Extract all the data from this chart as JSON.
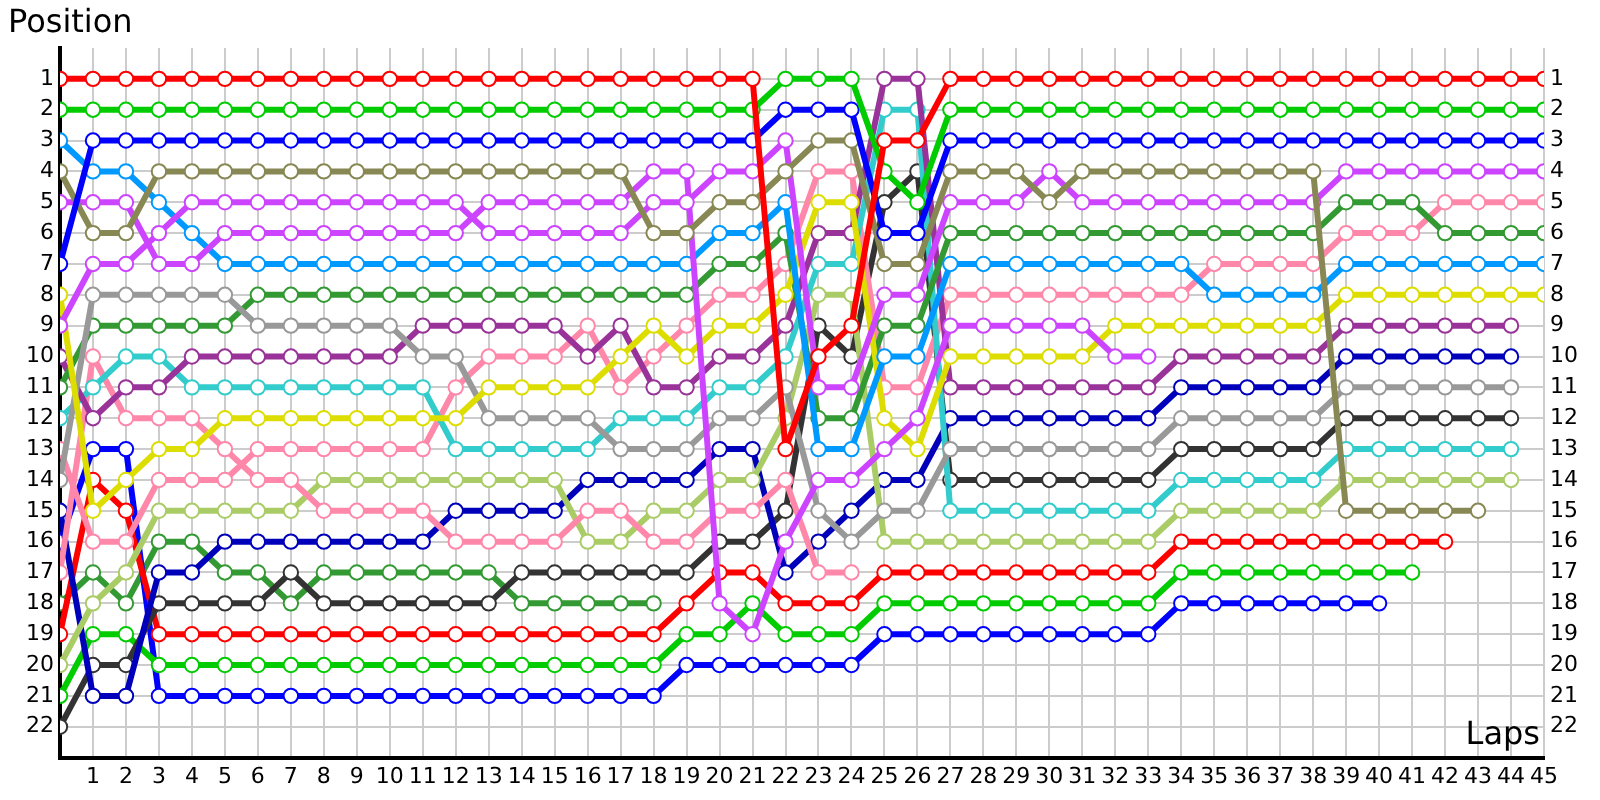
{
  "chart_data": {
    "type": "line",
    "xlabel": "Laps",
    "ylabel": "Position",
    "grid": true,
    "legend": false,
    "marker": "circle",
    "line_style": "solid",
    "x": [
      0,
      1,
      2,
      3,
      4,
      5,
      6,
      7,
      8,
      9,
      10,
      11,
      12,
      13,
      14,
      15,
      16,
      17,
      18,
      19,
      20,
      21,
      22,
      23,
      24,
      25,
      26,
      27,
      28,
      29,
      30,
      31,
      32,
      33,
      34,
      35,
      36,
      37,
      38,
      39,
      40,
      41,
      42,
      43,
      44,
      45
    ],
    "xlim": [
      0,
      45
    ],
    "xticks": [
      1,
      2,
      3,
      4,
      5,
      6,
      7,
      8,
      9,
      10,
      11,
      12,
      13,
      14,
      15,
      16,
      17,
      18,
      19,
      20,
      21,
      22,
      23,
      24,
      25,
      26,
      27,
      28,
      29,
      30,
      31,
      32,
      33,
      34,
      35,
      36,
      37,
      38,
      39,
      40,
      41,
      42,
      43,
      44,
      45
    ],
    "ylim": [
      23,
      0
    ],
    "yticks": [
      1,
      2,
      3,
      4,
      5,
      6,
      7,
      8,
      9,
      10,
      11,
      12,
      13,
      14,
      15,
      16,
      17,
      18,
      19,
      20,
      21,
      22
    ],
    "y2lim": [
      23,
      0
    ],
    "y2ticks": [
      1,
      2,
      3,
      4,
      5,
      6,
      7,
      8,
      9,
      10,
      11,
      12,
      13,
      14,
      15,
      16,
      17,
      18,
      19,
      20,
      21,
      22
    ],
    "series": [
      {
        "color": "#ff0000",
        "values": [
          1,
          1,
          1,
          1,
          1,
          1,
          1,
          1,
          1,
          1,
          1,
          1,
          1,
          1,
          1,
          1,
          1,
          1,
          1,
          1,
          1,
          1,
          13,
          10,
          9,
          3,
          3,
          1,
          1,
          1,
          1,
          1,
          1,
          1,
          1,
          1,
          1,
          1,
          1,
          1,
          1,
          1,
          1,
          1,
          1,
          1
        ]
      },
      {
        "color": "#00cc00",
        "values": [
          2,
          2,
          2,
          2,
          2,
          2,
          2,
          2,
          2,
          2,
          2,
          2,
          2,
          2,
          2,
          2,
          2,
          2,
          2,
          2,
          2,
          2,
          1,
          1,
          1,
          4,
          5,
          2,
          2,
          2,
          2,
          2,
          2,
          2,
          2,
          2,
          2,
          2,
          2,
          2,
          2,
          2,
          2,
          2,
          2,
          2
        ]
      },
      {
        "color": "#0000ff",
        "values": [
          7,
          3,
          3,
          3,
          3,
          3,
          3,
          3,
          3,
          3,
          3,
          3,
          3,
          3,
          3,
          3,
          3,
          3,
          3,
          3,
          3,
          3,
          2,
          2,
          2,
          6,
          6,
          3,
          3,
          3,
          3,
          3,
          3,
          3,
          3,
          3,
          3,
          3,
          3,
          3,
          3,
          3,
          3,
          3,
          3,
          3
        ]
      },
      {
        "color": "#888855",
        "values": [
          4,
          6,
          6,
          4,
          4,
          4,
          4,
          4,
          4,
          4,
          4,
          4,
          4,
          4,
          4,
          4,
          4,
          4,
          6,
          6,
          5,
          5,
          4,
          3,
          3,
          7,
          7,
          4,
          4,
          4,
          5,
          4,
          4,
          4,
          4,
          4,
          4,
          4,
          4,
          15,
          15,
          15,
          15,
          15,
          null,
          null
        ]
      },
      {
        "color": "#cc44ff",
        "values": [
          9,
          7,
          7,
          6,
          5,
          5,
          5,
          5,
          5,
          5,
          5,
          5,
          5,
          6,
          6,
          6,
          6,
          6,
          5,
          5,
          4,
          4,
          3,
          11,
          11,
          8,
          8,
          5,
          5,
          5,
          4,
          5,
          5,
          5,
          5,
          5,
          5,
          5,
          5,
          4,
          4,
          4,
          4,
          4,
          4,
          4
        ]
      },
      {
        "color": "#cc44ff",
        "values": [
          5,
          5,
          5,
          7,
          7,
          6,
          6,
          6,
          6,
          6,
          6,
          6,
          6,
          5,
          5,
          5,
          5,
          5,
          4,
          4,
          18,
          19,
          16,
          14,
          14,
          13,
          12,
          9,
          9,
          9,
          9,
          9,
          10,
          10,
          null,
          null,
          null,
          null,
          null,
          null,
          null,
          null,
          null,
          null,
          null,
          null
        ]
      },
      {
        "color": "#0099ff",
        "values": [
          3,
          4,
          4,
          5,
          6,
          7,
          7,
          7,
          7,
          7,
          7,
          7,
          7,
          7,
          7,
          7,
          7,
          7,
          7,
          7,
          6,
          6,
          5,
          13,
          13,
          10,
          10,
          7,
          7,
          7,
          7,
          7,
          7,
          7,
          7,
          8,
          8,
          8,
          8,
          7,
          7,
          7,
          7,
          7,
          7,
          7
        ]
      },
      {
        "color": "#dddd00",
        "values": [
          8,
          15,
          14,
          13,
          13,
          12,
          12,
          12,
          12,
          12,
          12,
          12,
          12,
          11,
          11,
          11,
          11,
          10,
          9,
          10,
          9,
          9,
          8,
          5,
          5,
          12,
          13,
          10,
          10,
          10,
          10,
          10,
          9,
          9,
          9,
          9,
          9,
          9,
          9,
          8,
          8,
          8,
          8,
          8,
          8,
          8
        ]
      },
      {
        "color": "#999999",
        "values": [
          14,
          8,
          8,
          8,
          8,
          8,
          9,
          9,
          9,
          9,
          9,
          10,
          10,
          12,
          12,
          12,
          12,
          13,
          13,
          13,
          12,
          12,
          11,
          15,
          16,
          15,
          15,
          13,
          13,
          13,
          13,
          13,
          13,
          13,
          12,
          12,
          12,
          12,
          12,
          11,
          11,
          11,
          11,
          11,
          11,
          null
        ]
      },
      {
        "color": "#339933",
        "values": [
          11,
          9,
          9,
          9,
          9,
          9,
          8,
          8,
          8,
          8,
          8,
          8,
          8,
          8,
          8,
          8,
          8,
          8,
          8,
          8,
          7,
          7,
          6,
          12,
          12,
          9,
          9,
          6,
          6,
          6,
          6,
          6,
          6,
          6,
          6,
          6,
          6,
          6,
          6,
          5,
          5,
          5,
          6,
          6,
          6,
          6
        ]
      },
      {
        "color": "#993399",
        "values": [
          10,
          12,
          11,
          11,
          10,
          10,
          10,
          10,
          10,
          10,
          10,
          9,
          9,
          9,
          9,
          9,
          10,
          9,
          11,
          11,
          10,
          10,
          9,
          6,
          6,
          1,
          1,
          11,
          11,
          11,
          11,
          11,
          11,
          11,
          10,
          10,
          10,
          10,
          10,
          9,
          9,
          9,
          9,
          9,
          9,
          null
        ]
      },
      {
        "color": "#33cccc",
        "values": [
          12,
          11,
          10,
          10,
          11,
          11,
          11,
          11,
          11,
          11,
          11,
          11,
          13,
          13,
          13,
          13,
          13,
          12,
          12,
          12,
          11,
          11,
          10,
          7,
          7,
          2,
          2,
          15,
          15,
          15,
          15,
          15,
          15,
          15,
          14,
          14,
          14,
          14,
          14,
          13,
          13,
          13,
          13,
          13,
          13,
          null
        ]
      },
      {
        "color": "#ff88aa",
        "values": [
          13,
          16,
          16,
          14,
          14,
          14,
          13,
          13,
          13,
          13,
          13,
          13,
          11,
          10,
          10,
          10,
          9,
          11,
          10,
          9,
          8,
          8,
          7,
          4,
          4,
          11,
          11,
          8,
          8,
          8,
          8,
          8,
          8,
          8,
          8,
          7,
          7,
          7,
          7,
          6,
          6,
          6,
          5,
          5,
          5,
          5
        ]
      },
      {
        "color": "#ff88aa",
        "values": [
          17,
          10,
          12,
          12,
          12,
          13,
          14,
          14,
          15,
          15,
          15,
          15,
          16,
          16,
          16,
          16,
          15,
          15,
          16,
          16,
          15,
          15,
          14,
          17,
          17,
          null,
          null,
          null,
          null,
          null,
          null,
          null,
          null,
          null,
          null,
          null,
          null,
          null,
          null,
          null,
          null,
          null,
          null,
          null,
          null,
          null
        ]
      },
      {
        "color": "#aacc66",
        "values": [
          20,
          18,
          17,
          15,
          15,
          15,
          15,
          15,
          14,
          14,
          14,
          14,
          14,
          14,
          14,
          14,
          16,
          16,
          15,
          15,
          14,
          14,
          12,
          8,
          8,
          16,
          16,
          16,
          16,
          16,
          16,
          16,
          16,
          16,
          15,
          15,
          15,
          15,
          15,
          14,
          14,
          14,
          14,
          14,
          14,
          null
        ]
      },
      {
        "color": "#0000bb",
        "values": [
          15,
          21,
          21,
          17,
          17,
          16,
          16,
          16,
          16,
          16,
          16,
          16,
          15,
          15,
          15,
          15,
          14,
          14,
          14,
          14,
          13,
          13,
          17,
          16,
          15,
          14,
          14,
          12,
          12,
          12,
          12,
          12,
          12,
          12,
          11,
          11,
          11,
          11,
          11,
          10,
          10,
          10,
          10,
          10,
          10,
          null
        ]
      },
      {
        "color": "#333333",
        "values": [
          22,
          20,
          20,
          18,
          18,
          18,
          18,
          17,
          18,
          18,
          18,
          18,
          18,
          18,
          17,
          17,
          17,
          17,
          17,
          17,
          16,
          16,
          15,
          9,
          10,
          5,
          4,
          14,
          14,
          14,
          14,
          14,
          14,
          14,
          13,
          13,
          13,
          13,
          13,
          12,
          12,
          12,
          12,
          12,
          12,
          null
        ]
      },
      {
        "color": "#ff0000",
        "values": [
          19,
          14,
          15,
          19,
          19,
          19,
          19,
          19,
          19,
          19,
          19,
          19,
          19,
          19,
          19,
          19,
          19,
          19,
          19,
          18,
          17,
          17,
          18,
          18,
          18,
          17,
          17,
          17,
          17,
          17,
          17,
          17,
          17,
          17,
          16,
          16,
          16,
          16,
          16,
          16,
          16,
          16,
          16,
          null,
          null,
          null
        ]
      },
      {
        "color": "#00cc00",
        "values": [
          21,
          19,
          19,
          20,
          20,
          20,
          20,
          20,
          20,
          20,
          20,
          20,
          20,
          20,
          20,
          20,
          20,
          20,
          20,
          19,
          19,
          18,
          19,
          19,
          19,
          18,
          18,
          18,
          18,
          18,
          18,
          18,
          18,
          18,
          17,
          17,
          17,
          17,
          17,
          17,
          17,
          17,
          null,
          null,
          null,
          null
        ]
      },
      {
        "color": "#0000ff",
        "values": [
          16,
          13,
          13,
          21,
          21,
          21,
          21,
          21,
          21,
          21,
          21,
          21,
          21,
          21,
          21,
          21,
          21,
          21,
          21,
          20,
          20,
          20,
          20,
          20,
          20,
          19,
          19,
          19,
          19,
          19,
          19,
          19,
          19,
          19,
          18,
          18,
          18,
          18,
          18,
          18,
          18,
          null,
          null,
          null,
          null,
          null
        ]
      },
      {
        "color": "#339933",
        "values": [
          18,
          17,
          18,
          16,
          16,
          17,
          17,
          18,
          17,
          17,
          17,
          17,
          17,
          17,
          18,
          18,
          18,
          18,
          18,
          null,
          null,
          null,
          null,
          null,
          null,
          null,
          null,
          null,
          null,
          null,
          null,
          null,
          null,
          null,
          null,
          null,
          null,
          null,
          null,
          null,
          null,
          null,
          null,
          null,
          null,
          null
        ]
      }
    ]
  }
}
